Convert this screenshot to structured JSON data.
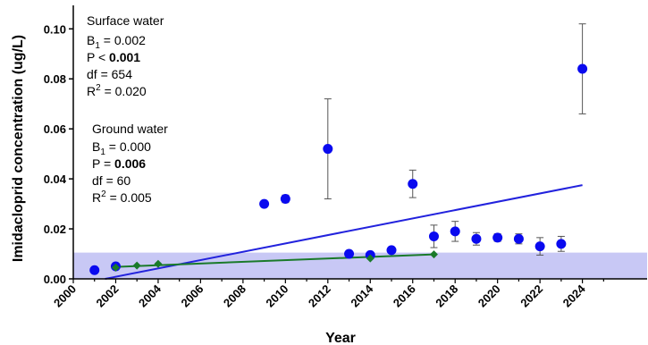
{
  "chart_data": {
    "type": "scatter",
    "xlabel": "Year",
    "ylabel": "Imidacloprid concentration (ug/L)",
    "xlim": [
      2000,
      2025
    ],
    "ylim": [
      0,
      0.11
    ],
    "xticks": [
      "2000",
      "2002",
      "2004",
      "2006",
      "2008",
      "2010",
      "2012",
      "2014",
      "2016",
      "2018",
      "2020",
      "2022",
      "2024"
    ],
    "yticks": [
      "0.00",
      "0.02",
      "0.04",
      "0.06",
      "0.08",
      "0.10"
    ],
    "grid": false,
    "shaded_band": {
      "y_from": 0,
      "y_to": 0.0105,
      "color": "#c8c8f5"
    },
    "series": [
      {
        "name": "Surface water",
        "color": "#0a0aef",
        "marker": "circle",
        "points": [
          {
            "x": 2001,
            "y": 0.0035
          },
          {
            "x": 2002,
            "y": 0.005
          },
          {
            "x": 2009,
            "y": 0.03
          },
          {
            "x": 2010,
            "y": 0.032,
            "err": 0.0015
          },
          {
            "x": 2012,
            "y": 0.052,
            "err": 0.02
          },
          {
            "x": 2013,
            "y": 0.01
          },
          {
            "x": 2014,
            "y": 0.0095
          },
          {
            "x": 2015,
            "y": 0.0115
          },
          {
            "x": 2016,
            "y": 0.038,
            "err": 0.0055
          },
          {
            "x": 2017,
            "y": 0.017,
            "err": 0.0045
          },
          {
            "x": 2018,
            "y": 0.019,
            "err": 0.004
          },
          {
            "x": 2019,
            "y": 0.016,
            "err": 0.0025
          },
          {
            "x": 2020,
            "y": 0.0165,
            "err": 0.0015
          },
          {
            "x": 2021,
            "y": 0.016,
            "err": 0.002
          },
          {
            "x": 2022,
            "y": 0.013,
            "err": 0.0035
          },
          {
            "x": 2023,
            "y": 0.014,
            "err": 0.003
          },
          {
            "x": 2024,
            "y": 0.084,
            "err": 0.018
          }
        ],
        "trend": {
          "x": [
            2001.5,
            2024
          ],
          "y": [
            0.0,
            0.0375
          ],
          "color": "#2222dd"
        }
      },
      {
        "name": "Ground water",
        "color": "#1a7a2a",
        "marker": "diamond",
        "points": [
          {
            "x": 2002,
            "y": 0.0045
          },
          {
            "x": 2003,
            "y": 0.0053
          },
          {
            "x": 2004,
            "y": 0.006
          },
          {
            "x": 2014,
            "y": 0.0082
          },
          {
            "x": 2017,
            "y": 0.0098
          }
        ],
        "trend": {
          "x": [
            2002,
            2017
          ],
          "y": [
            0.0048,
            0.0098
          ],
          "color": "#1a7a2a"
        }
      }
    ],
    "annotations": {
      "surface": {
        "title": "Surface water",
        "b1_label": "B",
        "b1_sub": "1",
        "b1_value": " = 0.002",
        "p_prefix": "P < ",
        "p_value": "0.001",
        "df": "df = 654",
        "r2_label": "R",
        "r2_sup": "2",
        "r2_value": " = 0.020"
      },
      "ground": {
        "title": "Ground water",
        "b1_label": "B",
        "b1_sub": "1",
        "b1_value": " = 0.000",
        "p_prefix": "P = ",
        "p_value": "0.006",
        "df": "df = 60",
        "r2_label": "R",
        "r2_sup": "2",
        "r2_value": " = 0.005"
      }
    }
  }
}
